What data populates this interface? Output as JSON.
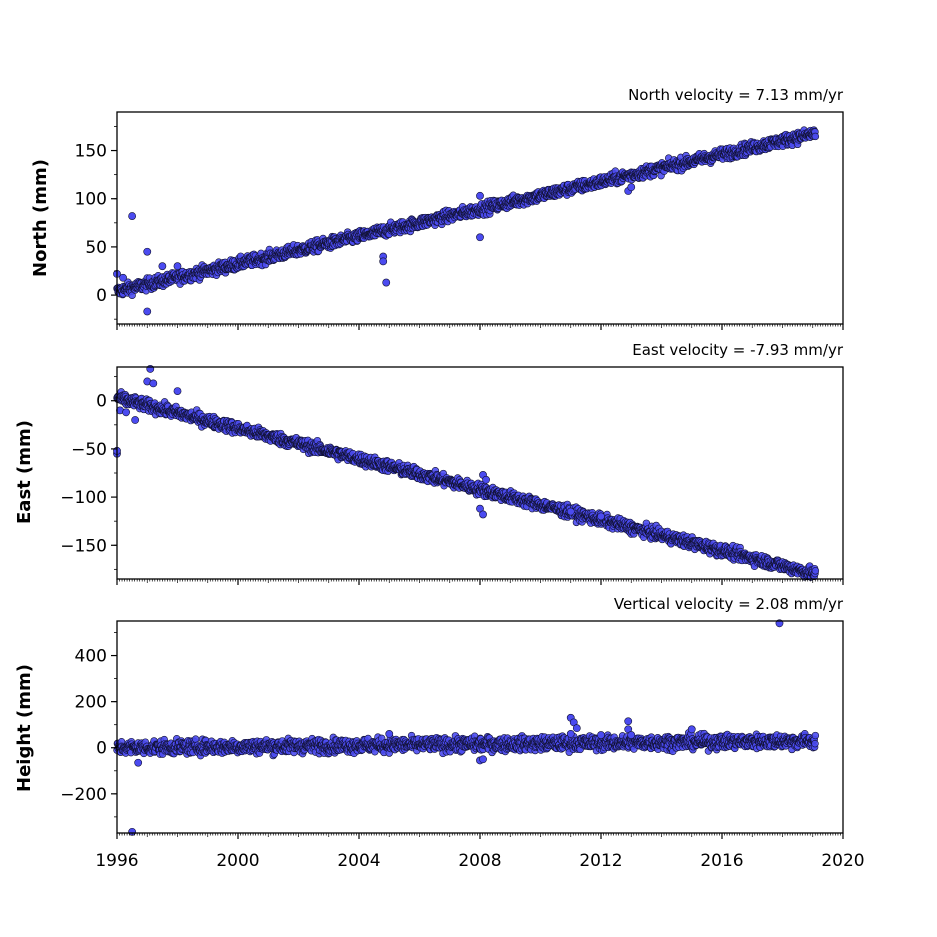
{
  "colors": {
    "marker_fill": "#4b4bf0",
    "marker_edge": "#111133",
    "axis": "#000000",
    "background": "#ffffff"
  },
  "chart_data": [
    {
      "type": "scatter",
      "title": "North velocity = 7.13 mm/yr",
      "ylabel": "North (mm)",
      "xlim": [
        1996,
        2020
      ],
      "ylim": [
        -30,
        190
      ],
      "yticks": [
        0,
        50,
        100,
        150
      ],
      "ytick_labels": [
        "0",
        "50",
        "100",
        "150"
      ],
      "trend": {
        "start": [
          1996.0,
          4
        ],
        "end": [
          2019.1,
          168
        ],
        "noise_mm": 3
      },
      "points": [
        [
          1996.0,
          22
        ],
        [
          1996.2,
          18
        ],
        [
          1996.5,
          82
        ],
        [
          1997.0,
          45
        ],
        [
          1997.0,
          -17
        ],
        [
          1997.5,
          30
        ],
        [
          1998.0,
          30
        ],
        [
          2004.8,
          40
        ],
        [
          2004.8,
          35
        ],
        [
          2004.9,
          13
        ],
        [
          2008.0,
          103
        ],
        [
          2008.0,
          60
        ],
        [
          2012.9,
          108
        ],
        [
          2013.0,
          112
        ]
      ]
    },
    {
      "type": "scatter",
      "title": "East velocity = -7.93 mm/yr",
      "ylabel": "East (mm)",
      "xlim": [
        1996,
        2020
      ],
      "ylim": [
        -185,
        35
      ],
      "yticks": [
        0,
        -50,
        -100,
        -150
      ],
      "ytick_labels": [
        "0",
        "−50",
        "−100",
        "−150"
      ],
      "trend": {
        "start": [
          1996.0,
          3
        ],
        "end": [
          2019.1,
          -180
        ],
        "noise_mm": 3
      },
      "points": [
        [
          1996.0,
          -55
        ],
        [
          1996.0,
          -52
        ],
        [
          1996.1,
          -10
        ],
        [
          1996.3,
          -12
        ],
        [
          1996.6,
          -20
        ],
        [
          1997.1,
          33
        ],
        [
          1997.0,
          20
        ],
        [
          1997.2,
          18
        ],
        [
          1998.0,
          10
        ],
        [
          2008.0,
          -112
        ],
        [
          2008.1,
          -118
        ],
        [
          2008.1,
          -77
        ],
        [
          2008.2,
          -82
        ],
        [
          2011.0,
          -115
        ],
        [
          2012.0,
          -120
        ]
      ]
    },
    {
      "type": "scatter",
      "title": "Vertical velocity = 2.08 mm/yr",
      "ylabel": "Height (mm)",
      "xlim": [
        1996,
        2020
      ],
      "ylim": [
        -370,
        550
      ],
      "yticks": [
        400,
        200,
        0,
        -200
      ],
      "ytick_labels": [
        "400",
        "200",
        "0",
        "−200"
      ],
      "trend": {
        "start": [
          1996.0,
          0
        ],
        "end": [
          2019.1,
          30
        ],
        "noise_mm": 15
      },
      "points": [
        [
          1996.5,
          -365
        ],
        [
          1996.7,
          -65
        ],
        [
          2005.0,
          60
        ],
        [
          2008.0,
          -55
        ],
        [
          2008.1,
          -50
        ],
        [
          2011.0,
          130
        ],
        [
          2011.1,
          110
        ],
        [
          2011.2,
          85
        ],
        [
          2011.0,
          60
        ],
        [
          2012.0,
          55
        ],
        [
          2012.9,
          115
        ],
        [
          2012.9,
          80
        ],
        [
          2013.0,
          55
        ],
        [
          2015.0,
          80
        ],
        [
          2017.9,
          540
        ]
      ]
    }
  ],
  "xaxis": {
    "ticks": [
      1996,
      2000,
      2004,
      2008,
      2012,
      2016,
      2020
    ],
    "tick_labels": [
      "1996",
      "2000",
      "2004",
      "2008",
      "2012",
      "2016",
      "2020"
    ]
  }
}
